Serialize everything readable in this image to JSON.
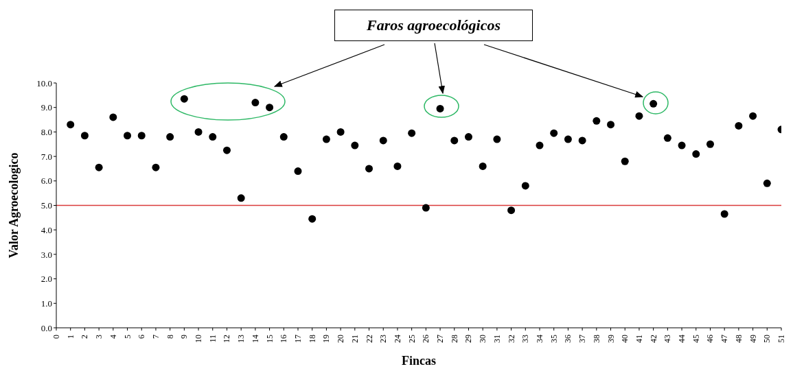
{
  "chart_data": {
    "type": "scatter",
    "xlabel": "Fincas",
    "ylabel": "Valor Agroecologico",
    "annotations": [
      "Faros agroecológicos"
    ],
    "x": [
      1,
      2,
      3,
      4,
      5,
      6,
      7,
      8,
      9,
      10,
      11,
      12,
      13,
      14,
      15,
      16,
      17,
      18,
      19,
      20,
      21,
      22,
      23,
      24,
      25,
      26,
      27,
      28,
      29,
      30,
      31,
      32,
      33,
      34,
      35,
      36,
      37,
      38,
      39,
      40,
      41,
      42,
      43,
      44,
      45,
      46,
      47,
      48,
      49,
      50,
      51
    ],
    "values": [
      8.3,
      7.85,
      6.55,
      8.6,
      7.85,
      7.85,
      6.55,
      7.8,
      9.35,
      8.0,
      7.8,
      7.25,
      5.3,
      9.2,
      9.0,
      7.8,
      6.4,
      4.45,
      7.7,
      8.0,
      7.45,
      6.5,
      7.65,
      6.6,
      7.95,
      4.9,
      8.95,
      7.65,
      7.8,
      6.6,
      7.7,
      4.8,
      5.8,
      7.45,
      7.95,
      7.7,
      7.65,
      8.45,
      8.3,
      6.8,
      8.65,
      9.15,
      7.75,
      7.45,
      7.1,
      7.5,
      4.65,
      8.25,
      8.65,
      5.9,
      8.1
    ],
    "color": "#000000",
    "marker": "circle",
    "xlim": [
      0,
      51
    ],
    "xticks": [
      0,
      1,
      2,
      3,
      4,
      5,
      6,
      7,
      8,
      9,
      10,
      11,
      12,
      13,
      14,
      15,
      16,
      17,
      18,
      19,
      20,
      21,
      22,
      23,
      24,
      25,
      26,
      27,
      28,
      29,
      30,
      31,
      32,
      33,
      34,
      35,
      36,
      37,
      38,
      39,
      40,
      41,
      42,
      43,
      44,
      45,
      46,
      47,
      48,
      49,
      50,
      51
    ],
    "ylim": [
      0,
      10
    ],
    "yticks": [
      {
        "value": 0,
        "label": "0.0"
      },
      {
        "value": 1,
        "label": "1.0"
      },
      {
        "value": 2,
        "label": "2.0"
      },
      {
        "value": 3,
        "label": "3.0"
      },
      {
        "value": 4,
        "label": "4.0"
      },
      {
        "value": 5,
        "label": "5.0"
      },
      {
        "value": 6,
        "label": "6.0"
      },
      {
        "value": 7,
        "label": "7.0"
      },
      {
        "value": 8,
        "label": "8.0"
      },
      {
        "value": 9,
        "label": "9.0"
      },
      {
        "value": 10,
        "label": "10.0"
      }
    ],
    "ref_lines": [
      {
        "axis": "y",
        "value": 5,
        "color": "#d93a3a"
      }
    ],
    "grid": false,
    "legend": false
  }
}
